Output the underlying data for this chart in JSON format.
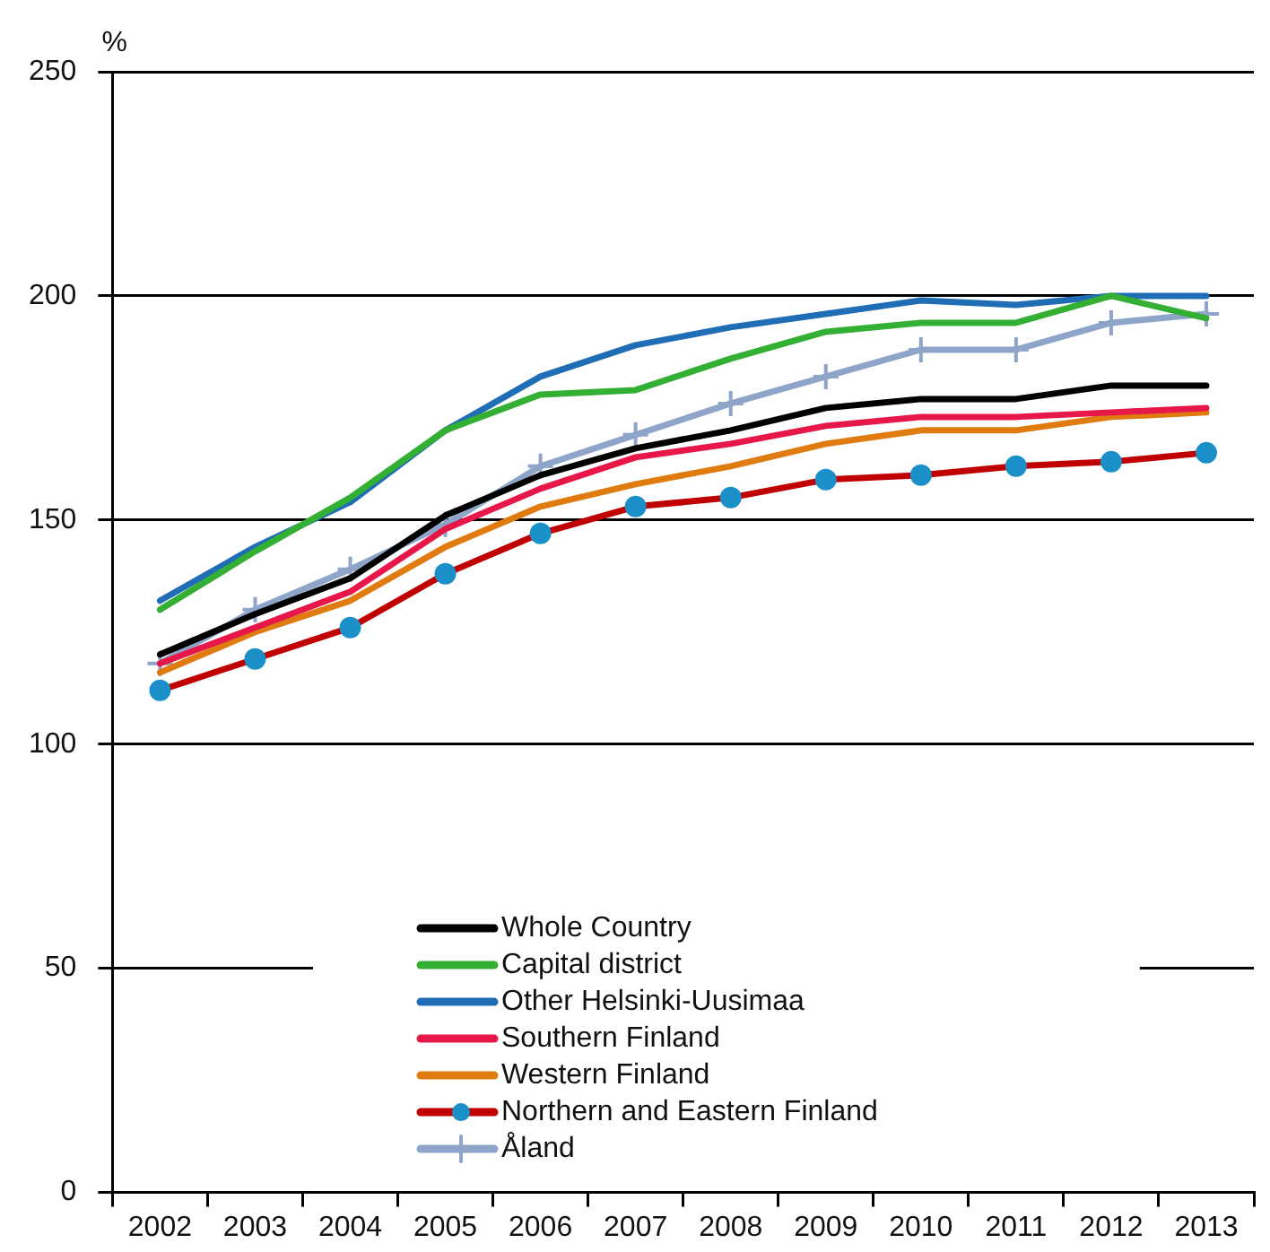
{
  "chart_data": {
    "type": "line",
    "ylabel": "%",
    "categories": [
      "2002",
      "2003",
      "2004",
      "2005",
      "2006",
      "2007",
      "2008",
      "2009",
      "2010",
      "2011",
      "2012",
      "2013"
    ],
    "ylim": [
      0,
      250
    ],
    "yticks": [
      0,
      50,
      100,
      150,
      200,
      250
    ],
    "grid": "y",
    "legend": "bottom",
    "marker": "none",
    "line_style": "solid",
    "series": [
      {
        "name": "Whole Country",
        "color": "#000000",
        "values": [
          120,
          129,
          137,
          151,
          160,
          166,
          170,
          175,
          177,
          177,
          180,
          180
        ]
      },
      {
        "name": "Capital district",
        "color": "#33b033",
        "values": [
          130,
          143,
          155,
          170,
          178,
          179,
          186,
          192,
          194,
          194,
          200,
          195
        ]
      },
      {
        "name": "Other Helsinki-Uusimaa",
        "color": "#1f6db5",
        "values": [
          132,
          144,
          154,
          170,
          182,
          189,
          193,
          196,
          199,
          198,
          200,
          200
        ]
      },
      {
        "name": "Southern Finland",
        "color": "#e8174a",
        "values": [
          118,
          126,
          134,
          148,
          157,
          164,
          167,
          171,
          173,
          173,
          174,
          175
        ]
      },
      {
        "name": "Western Finland",
        "color": "#e07b10",
        "values": [
          116,
          125,
          132,
          144,
          153,
          158,
          162,
          167,
          170,
          170,
          173,
          174
        ]
      },
      {
        "name": "Northern and Eastern Finland",
        "color": "#c00000",
        "marker": "circle",
        "colors": [
          "#1a8fc8",
          "#1a8fc8",
          "#1a8fc8",
          "#1a8fc8",
          "#1a8fc8",
          "#1a8fc8",
          "#1a8fc8",
          "#1a8fc8",
          "#1a8fc8",
          "#1a8fc8",
          "#1a8fc8",
          "#1a8fc8"
        ],
        "values": [
          112,
          119,
          126,
          138,
          147,
          153,
          155,
          159,
          160,
          162,
          163,
          165
        ]
      },
      {
        "name": "Åland",
        "color": "#8ea4c8",
        "marker": "cross",
        "values": [
          118,
          130,
          139,
          149,
          162,
          169,
          176,
          182,
          188,
          188,
          194,
          196
        ]
      }
    ]
  }
}
